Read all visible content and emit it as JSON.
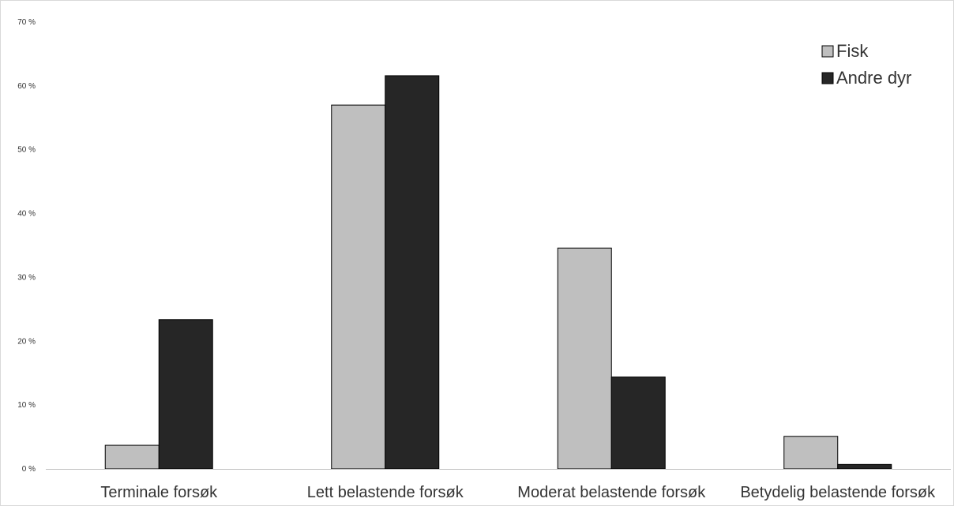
{
  "chart_data": {
    "type": "bar",
    "title": "",
    "xlabel": "",
    "ylabel": "",
    "categories": [
      "Terminale forsøk",
      "Lett belastende forsøk",
      "Moderat belastende forsøk",
      "Betydelig belastende forsøk"
    ],
    "series": [
      {
        "name": "Fisk",
        "values": [
          3.7,
          57.0,
          34.6,
          5.1
        ],
        "color": "#bfbfbf"
      },
      {
        "name": "Andre dyr",
        "values": [
          23.4,
          61.6,
          14.4,
          0.7
        ],
        "color": "#262626"
      }
    ],
    "ylim": [
      0,
      70
    ],
    "yticks": [
      {
        "value": 0,
        "label": "0 %"
      },
      {
        "value": 10,
        "label": "10 %"
      },
      {
        "value": 20,
        "label": "20 %"
      },
      {
        "value": 30,
        "label": "30 %"
      },
      {
        "value": 40,
        "label": "40 %"
      },
      {
        "value": 50,
        "label": "50 %"
      },
      {
        "value": 60,
        "label": "60 %"
      },
      {
        "value": 70,
        "label": "70 %"
      }
    ],
    "grid": false,
    "legend_position": "top-right"
  }
}
